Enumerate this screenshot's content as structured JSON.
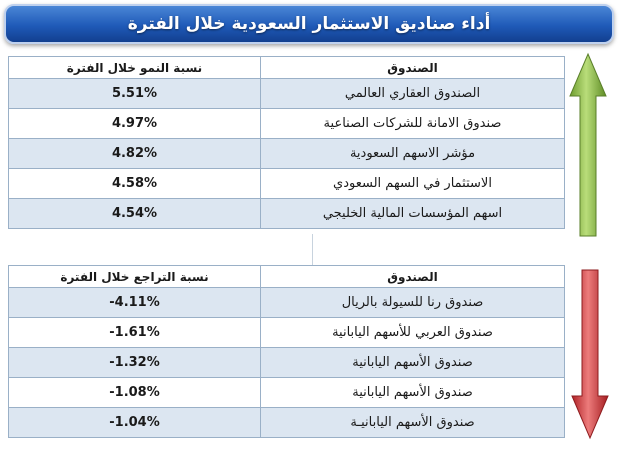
{
  "title": "أداء صناديق الاستثمار السعودية خلال الفترة",
  "gainers": {
    "col_fund": "الصندوق",
    "col_change": "نسبة النمو خلال الفترة",
    "rows": [
      {
        "fund": "الصندوق العقاري العالمي",
        "change": "5.51%"
      },
      {
        "fund": "صندوق الامانة للشركات الصناعية",
        "change": "4.97%"
      },
      {
        "fund": "مؤشر الاسهم السعودية",
        "change": "4.82%"
      },
      {
        "fund": "الاستثمار في السهم السعودي",
        "change": "4.58%"
      },
      {
        "fund": "اسهم المؤسسات المالية الخليجي",
        "change": "4.54%"
      }
    ]
  },
  "losers": {
    "col_fund": "الصندوق",
    "col_change": "نسبة التراجع خلال الفترة",
    "rows": [
      {
        "fund": "صندوق رنا للسيولة بالريال",
        "change": "-4.11%"
      },
      {
        "fund": "صندوق العربي للأسهم اليابانية",
        "change": "-1.61%"
      },
      {
        "fund": "صندوق الأسهم اليابانية",
        "change": "-1.32%"
      },
      {
        "fund": "صندوق الأسهم اليابانية",
        "change": "-1.08%"
      },
      {
        "fund": "صندوق الأسهم اليابانيـة",
        "change": "-1.04%"
      }
    ]
  },
  "colors": {
    "up_arrow": "#8fc34a",
    "down_arrow": "#d8383a",
    "title_bg": "#1f5ab8",
    "row_alt": "#dce6f1"
  },
  "icons": {
    "up": "arrow-up-icon",
    "down": "arrow-down-icon"
  }
}
